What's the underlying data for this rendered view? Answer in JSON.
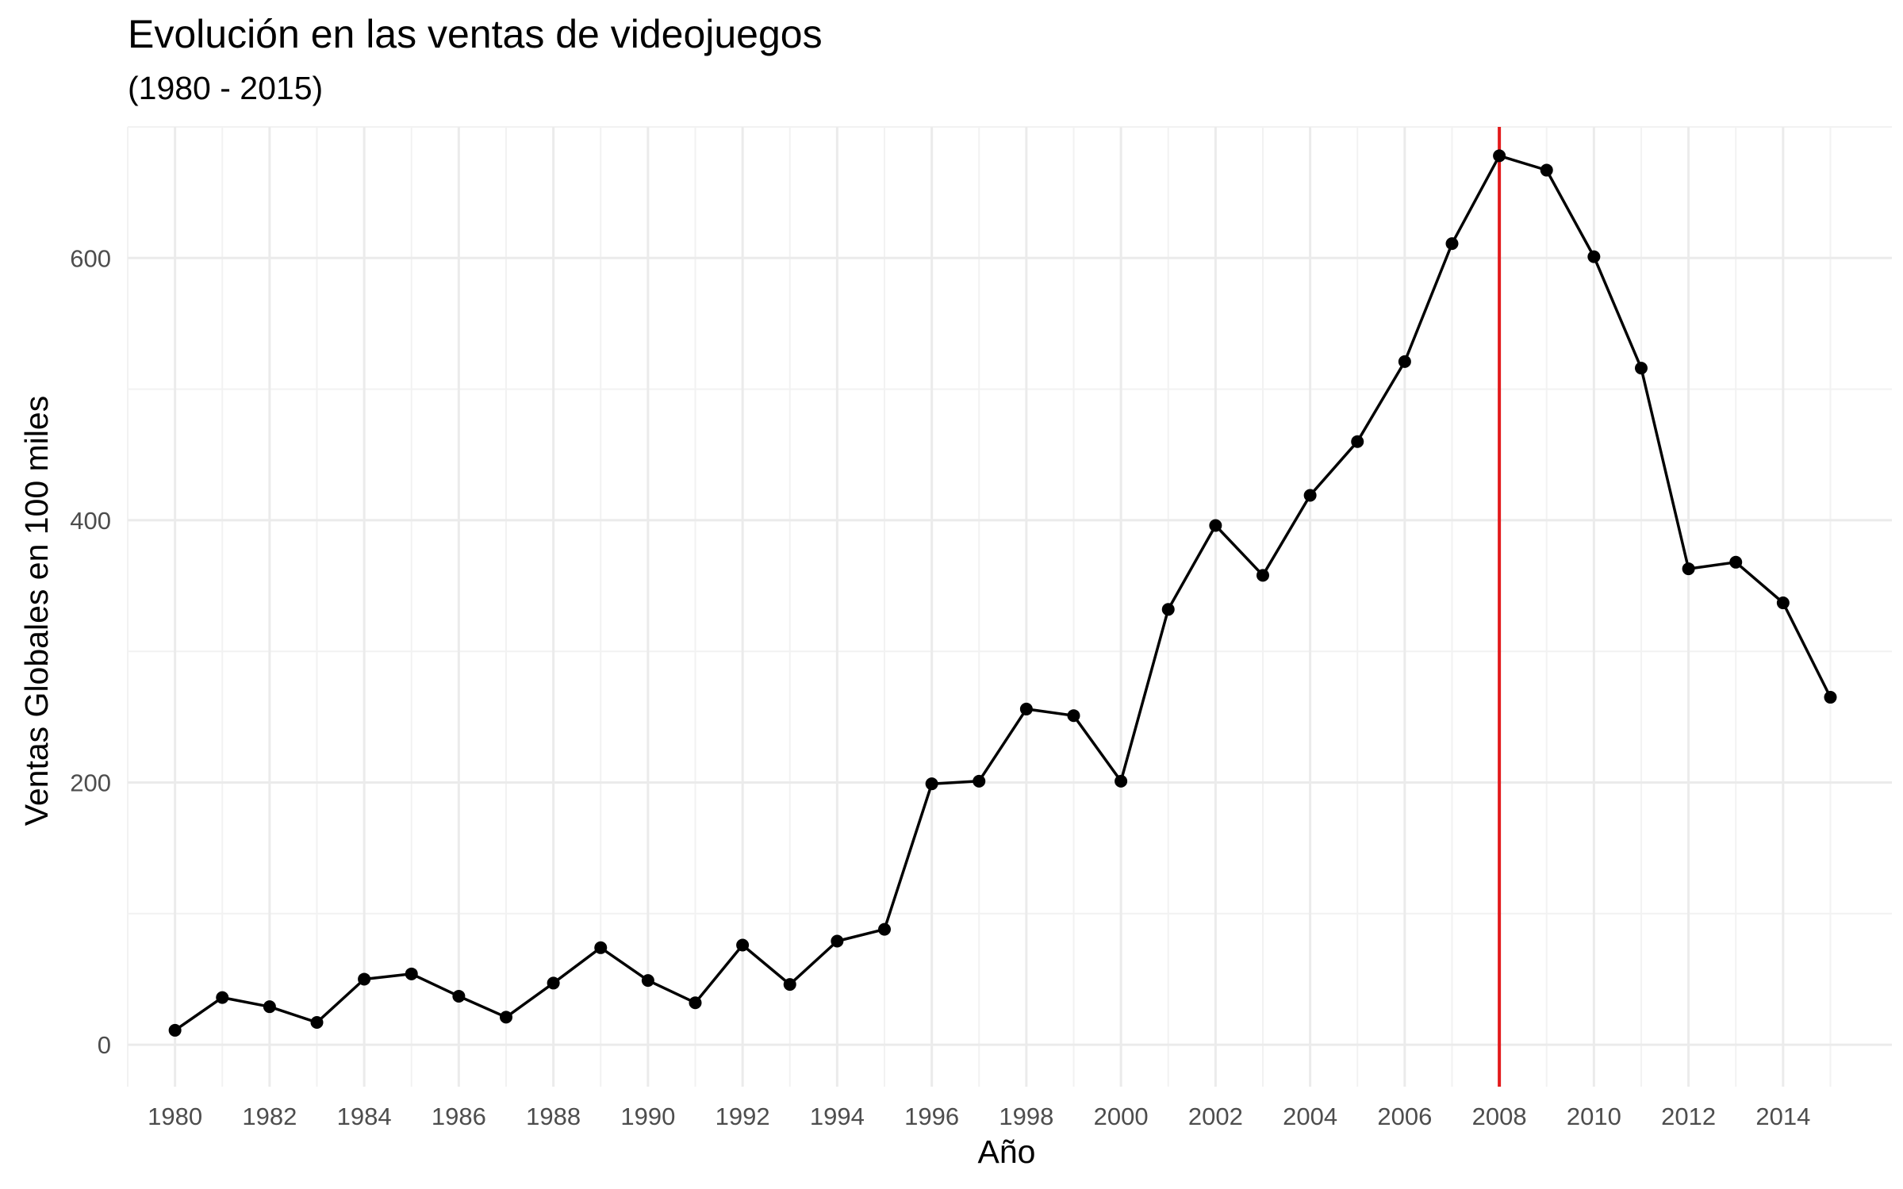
{
  "chart_data": {
    "type": "line",
    "title": "Evolución en las ventas de videojuegos",
    "subtitle": "(1980 - 2015)",
    "xlabel": "Año",
    "ylabel": "Ventas Globales en 100 miles",
    "x": [
      1980,
      1981,
      1982,
      1983,
      1984,
      1985,
      1986,
      1987,
      1988,
      1989,
      1990,
      1991,
      1992,
      1993,
      1994,
      1995,
      1996,
      1997,
      1998,
      1999,
      2000,
      2001,
      2002,
      2003,
      2004,
      2005,
      2006,
      2007,
      2008,
      2009,
      2010,
      2011,
      2012,
      2013,
      2014,
      2015
    ],
    "series": [
      {
        "values": [
          11,
          36,
          29,
          17,
          50,
          54,
          37,
          21,
          47,
          74,
          49,
          32,
          76,
          46,
          79,
          88,
          199,
          201,
          256,
          251,
          201,
          332,
          396,
          358,
          419,
          460,
          521,
          611,
          678,
          667,
          601,
          516,
          363,
          368,
          337,
          265
        ]
      }
    ],
    "xlim": [
      1979,
      2016.3
    ],
    "ylim": [
      -32,
      700
    ],
    "x_ticks": [
      "1980",
      "1982",
      "1984",
      "1986",
      "1988",
      "1990",
      "1992",
      "1994",
      "1996",
      "1998",
      "2000",
      "2002",
      "2004",
      "2006",
      "2008",
      "2010",
      "2012",
      "2014"
    ],
    "y_ticks": [
      "0",
      "200",
      "400",
      "600"
    ],
    "grid": true,
    "highlight_x": 2008,
    "colors": {
      "line": "#000000",
      "points": "#000000",
      "highlight": "#e31a1c",
      "grid_major": "#ebebeb",
      "grid_minor": "#f2f2f2",
      "tick_text": "#4d4d4d"
    }
  }
}
